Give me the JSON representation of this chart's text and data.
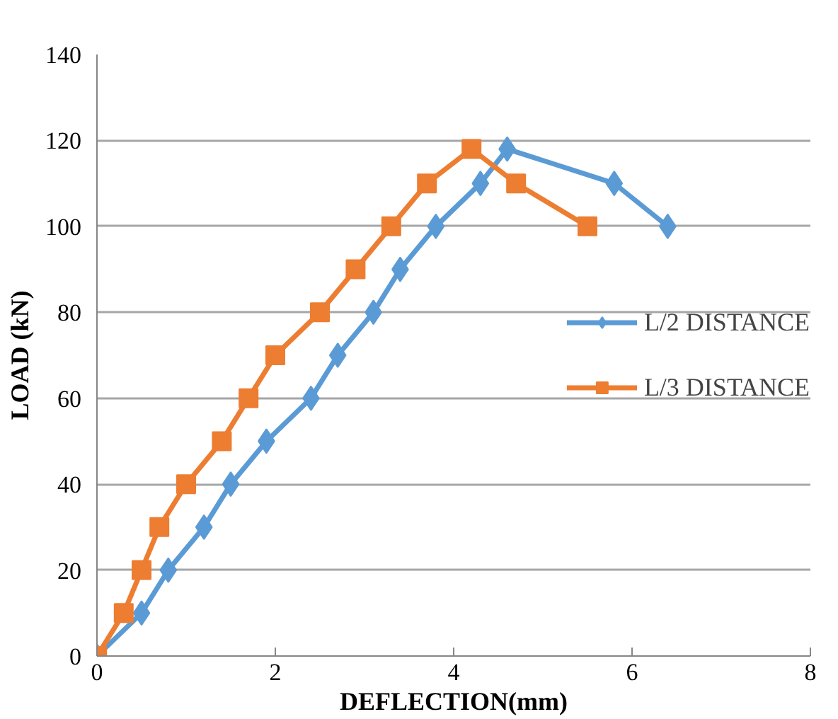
{
  "chart_data": {
    "type": "line",
    "xlabel": "DEFLECTION(mm)",
    "ylabel": "LOAD (kN)",
    "xlim": [
      0,
      8
    ],
    "xticks": [
      0,
      2,
      4,
      6,
      8
    ],
    "ylim": [
      0,
      140
    ],
    "yticks": [
      0,
      20,
      40,
      60,
      80,
      100,
      120,
      140
    ],
    "grid": "y",
    "legend": "right",
    "series": [
      {
        "name": "L/2 DISTANCE",
        "color": "#5b9bd5",
        "marker": "diamond",
        "x": [
          0,
          0.5,
          0.8,
          1.2,
          1.5,
          1.9,
          2.4,
          2.7,
          3.1,
          3.4,
          3.8,
          4.3,
          4.6,
          5.8,
          6.4
        ],
        "values": [
          0,
          10,
          20,
          30,
          40,
          50,
          60,
          70,
          80,
          90,
          100,
          110,
          118,
          110,
          100
        ]
      },
      {
        "name": "L/3 DISTANCE",
        "color": "#ed7d31",
        "marker": "square",
        "x": [
          0,
          0.3,
          0.5,
          0.7,
          1.0,
          1.4,
          1.7,
          2.0,
          2.5,
          2.9,
          3.3,
          3.7,
          4.2,
          4.7,
          5.5
        ],
        "values": [
          0,
          10,
          20,
          30,
          40,
          50,
          60,
          70,
          80,
          90,
          100,
          110,
          118,
          110,
          100
        ]
      }
    ]
  }
}
